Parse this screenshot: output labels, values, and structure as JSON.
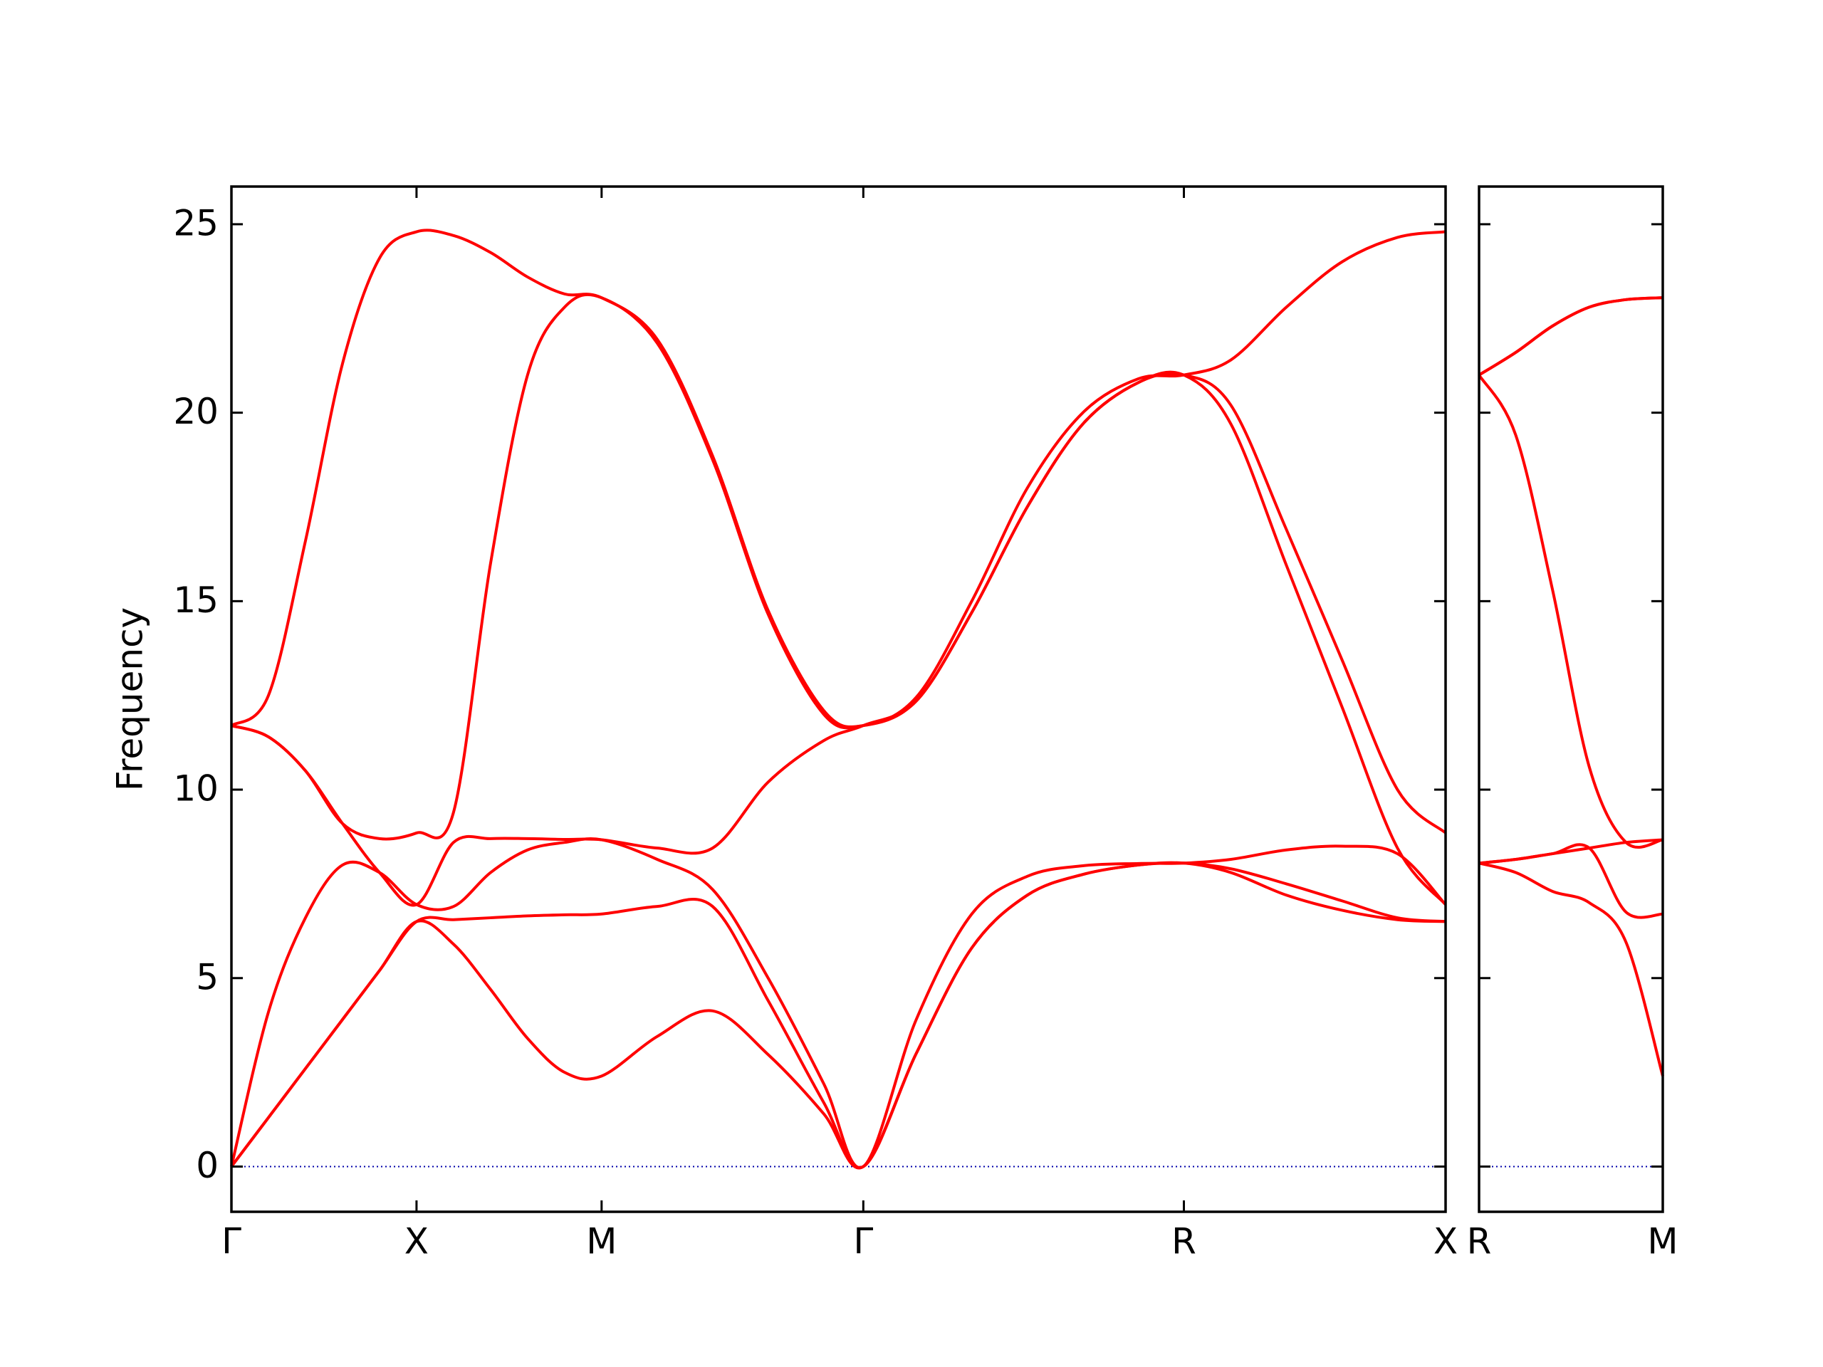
{
  "chart_data": [
    {
      "type": "line",
      "ylabel": "Frequency",
      "x": [
        0,
        0.1,
        0.2,
        0.3,
        0.4,
        0.5,
        0.6,
        0.7,
        0.8,
        0.9,
        1.0,
        1.15,
        1.3,
        1.45,
        1.6,
        1.707,
        1.85,
        2.0,
        2.15,
        2.3,
        2.45,
        2.573,
        2.7,
        2.85,
        3.0,
        3.15,
        3.28
      ],
      "xlim": [
        0,
        3.28
      ],
      "xticks": [
        {
          "value": 0,
          "label": "Γ"
        },
        {
          "value": 0.5,
          "label": "X"
        },
        {
          "value": 1.0,
          "label": "M"
        },
        {
          "value": 1.707,
          "label": "Γ"
        },
        {
          "value": 2.573,
          "label": "R"
        },
        {
          "value": 3.28,
          "label": "X"
        }
      ],
      "ylim": [
        -1.2,
        26.0
      ],
      "yticks": [
        0,
        5,
        10,
        15,
        20,
        25
      ],
      "show_ytick_labels": true,
      "zero_line": true,
      "zero_line_color": "#0000aa",
      "series": [
        {
          "color": "#ff0000",
          "values": [
            0,
            1.3,
            2.6,
            3.9,
            5.2,
            6.5,
            5.9,
            4.7,
            3.4,
            2.5,
            2.4,
            3.45,
            4.13,
            2.97,
            1.4,
            0,
            3.0,
            5.8,
            7.2,
            7.75,
            8.0,
            8.05,
            7.8,
            7.2,
            6.8,
            6.55,
            6.5
          ]
        },
        {
          "color": "#ff0000",
          "values": [
            0,
            1.3,
            2.6,
            3.9,
            5.2,
            6.5,
            6.55,
            6.6,
            6.65,
            6.68,
            6.7,
            6.9,
            6.9,
            4.4,
            1.7,
            0,
            3.0,
            5.8,
            7.2,
            7.75,
            8.0,
            8.05,
            7.9,
            7.5,
            7.05,
            6.6,
            6.5
          ]
        },
        {
          "color": "#ff0000",
          "values": [
            0,
            4.1,
            6.6,
            8.0,
            7.8,
            6.95,
            6.9,
            7.8,
            8.4,
            8.6,
            8.67,
            8.15,
            7.35,
            5.0,
            2.2,
            0,
            3.9,
            6.7,
            7.7,
            7.98,
            8.04,
            8.05,
            8.15,
            8.4,
            8.5,
            8.3,
            6.95
          ]
        },
        {
          "color": "#ff0000",
          "values": [
            11.7,
            11.4,
            10.5,
            9.1,
            7.8,
            6.95,
            8.6,
            8.7,
            8.7,
            8.68,
            8.67,
            8.45,
            8.45,
            10.2,
            11.3,
            11.7,
            12.35,
            14.7,
            17.5,
            19.7,
            20.8,
            21.0,
            19.7,
            15.95,
            12.2,
            8.45,
            6.95
          ]
        },
        {
          "color": "#ff0000",
          "values": [
            11.7,
            11.4,
            10.5,
            9.1,
            8.7,
            8.85,
            9.4,
            16.0,
            21.0,
            22.8,
            23.05,
            21.85,
            18.75,
            14.65,
            12.0,
            11.7,
            12.35,
            14.7,
            17.5,
            19.7,
            20.8,
            21.0,
            20.2,
            16.9,
            13.45,
            10.0,
            8.85
          ]
        },
        {
          "color": "#ff0000",
          "values": [
            11.7,
            12.5,
            16.6,
            21.3,
            24.1,
            24.8,
            24.7,
            24.25,
            23.6,
            23.15,
            23.05,
            21.95,
            18.85,
            14.75,
            12.1,
            11.7,
            12.45,
            15.0,
            18.0,
            20.0,
            20.9,
            21.0,
            21.4,
            22.8,
            24.0,
            24.65,
            24.8
          ]
        }
      ]
    },
    {
      "type": "line",
      "x": [
        0,
        0.1,
        0.2,
        0.3,
        0.4,
        0.5
      ],
      "xlim": [
        0,
        0.5
      ],
      "xticks": [
        {
          "value": 0,
          "label": "R"
        },
        {
          "value": 0.5,
          "label": "M"
        }
      ],
      "ylim": [
        -1.2,
        26.0
      ],
      "yticks": [
        0,
        5,
        10,
        15,
        20,
        25
      ],
      "show_ytick_labels": false,
      "zero_line": true,
      "zero_line_color": "#0000aa",
      "series": [
        {
          "color": "#ff0000",
          "values": [
            8.05,
            7.8,
            7.3,
            7.0,
            5.95,
            2.4
          ]
        },
        {
          "color": "#ff0000",
          "values": [
            8.05,
            8.15,
            8.3,
            8.45,
            6.75,
            6.7
          ]
        },
        {
          "color": "#ff0000",
          "values": [
            8.05,
            8.15,
            8.3,
            8.45,
            8.6,
            8.67
          ]
        },
        {
          "color": "#ff0000",
          "values": [
            21.0,
            19.4,
            15.3,
            10.6,
            8.6,
            8.67
          ]
        },
        {
          "color": "#ff0000",
          "values": [
            21.0,
            21.6,
            22.3,
            22.8,
            23.0,
            23.05
          ]
        },
        {
          "color": "#ff0000",
          "values": [
            21.0,
            21.6,
            22.3,
            22.8,
            23.0,
            23.05
          ]
        }
      ]
    }
  ]
}
